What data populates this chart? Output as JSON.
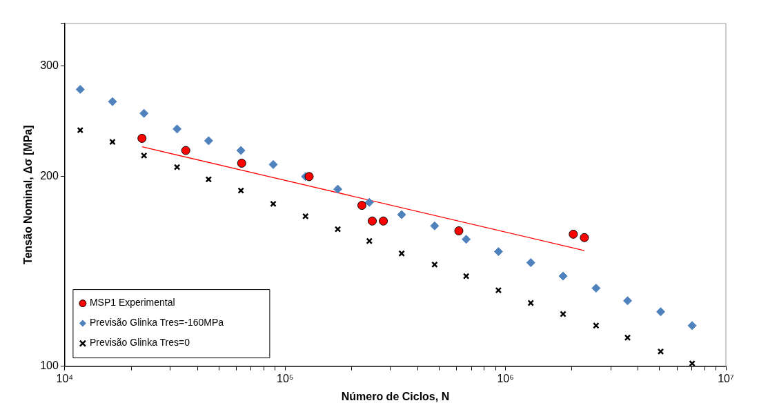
{
  "chart_data": {
    "type": "scatter",
    "xlabel": "Número de Ciclos, N",
    "ylabel": "Tensão Nominal, Δσ [MPa]",
    "log": "xy",
    "grid": false,
    "legend": "bottom left",
    "xlim": [
      10000,
      10000000
    ],
    "ylim": [
      100,
      350
    ],
    "xticks": [
      {
        "value": 10000,
        "label": "10⁴"
      },
      {
        "value": 20000,
        "label": null
      },
      {
        "value": 30000,
        "label": null
      },
      {
        "value": 40000,
        "label": null
      },
      {
        "value": 50000,
        "label": null
      },
      {
        "value": 60000,
        "label": null
      },
      {
        "value": 70000,
        "label": null
      },
      {
        "value": 80000,
        "label": null
      },
      {
        "value": 90000,
        "label": null
      },
      {
        "value": 100000,
        "label": "10⁵"
      },
      {
        "value": 200000,
        "label": null
      },
      {
        "value": 300000,
        "label": null
      },
      {
        "value": 400000,
        "label": null
      },
      {
        "value": 500000,
        "label": null
      },
      {
        "value": 600000,
        "label": null
      },
      {
        "value": 700000,
        "label": null
      },
      {
        "value": 800000,
        "label": null
      },
      {
        "value": 900000,
        "label": null
      },
      {
        "value": 1000000,
        "label": "10⁶"
      },
      {
        "value": 2000000,
        "label": null
      },
      {
        "value": 3000000,
        "label": null
      },
      {
        "value": 4000000,
        "label": null
      },
      {
        "value": 5000000,
        "label": null
      },
      {
        "value": 6000000,
        "label": null
      },
      {
        "value": 7000000,
        "label": null
      },
      {
        "value": 8000000,
        "label": null
      },
      {
        "value": 9000000,
        "label": null
      },
      {
        "value": 10000000,
        "label": "10⁷"
      }
    ],
    "yticks": [
      100,
      200,
      300,
      {
        "value": 350,
        "label": null
      }
    ],
    "series": [
      {
        "name": "MSP1 Experimental",
        "marker": "circle",
        "color": "#ff0000",
        "x": [
          22400,
          35400,
          63500,
          128500,
          223000,
          248500,
          279000,
          614000,
          2030000,
          2280000
        ],
        "values": [
          230,
          220,
          210,
          200,
          180,
          170,
          170,
          164,
          162,
          160
        ]
      },
      {
        "name": "Previsão Glinka Tres=-160MPa",
        "marker": "diamond",
        "color": "#4f81bd",
        "x": [
          11750,
          16460,
          22880,
          32320,
          44950,
          63000,
          88300,
          123700,
          173300,
          241000,
          337800,
          476800,
          663000,
          929000,
          1302000,
          1825000,
          2576000,
          3580000,
          5060000,
          7030000
        ],
        "values": [
          275,
          263,
          252,
          238,
          228,
          220,
          209,
          200,
          191,
          182,
          174,
          167,
          159,
          152,
          146,
          139,
          133,
          127,
          122,
          116
        ]
      },
      {
        "name": "Previsão Glinka Tres=0",
        "marker": "cross",
        "color": "#000000",
        "x": [
          11750,
          16460,
          22880,
          32320,
          44950,
          63000,
          88300,
          123700,
          173300,
          241000,
          337800,
          476800,
          663000,
          929000,
          1302000,
          1825000,
          2576000,
          3580000,
          5060000,
          7030000
        ],
        "values": [
          237,
          227,
          216,
          207,
          198,
          190,
          181,
          173,
          165,
          158,
          151,
          145,
          139,
          132,
          126,
          121,
          116,
          111,
          105.5,
          101
        ]
      },
      {
        "type": "line",
        "marker": "none",
        "line_style": "solid",
        "color": "#ff0000",
        "x": [
          22400,
          2280000
        ],
        "values": [
          223,
          152.6
        ]
      }
    ]
  }
}
